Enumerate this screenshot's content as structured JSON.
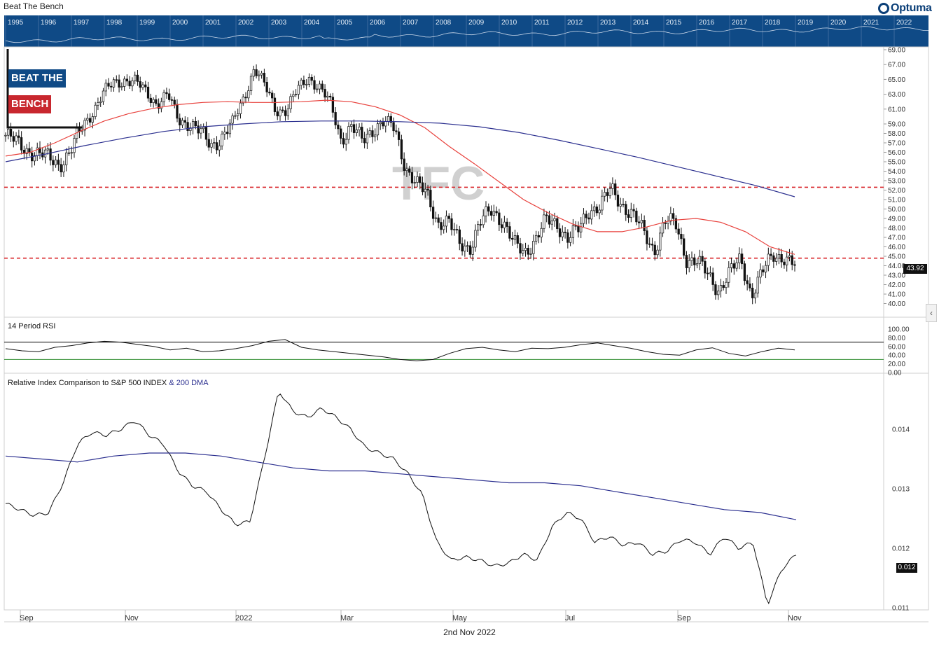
{
  "window": {
    "title": "Beat The Bench"
  },
  "logo": {
    "text": "Optuma"
  },
  "branding": {
    "line1": "BEAT THE",
    "line2": "BENCH"
  },
  "navigator": {
    "years": [
      "1995",
      "1996",
      "1997",
      "1998",
      "1999",
      "2000",
      "2001",
      "2002",
      "2003",
      "2004",
      "2005",
      "2006",
      "2007",
      "2008",
      "2009",
      "2010",
      "2011",
      "2012",
      "2013",
      "2014",
      "2015",
      "2016",
      "2017",
      "2018",
      "2019",
      "2020",
      "2021",
      "2022"
    ]
  },
  "footer": {
    "date": "2nd Nov 2022"
  },
  "colors": {
    "nav": "#0f4a86",
    "brand_blue": "#0f4a86",
    "brand_red": "#c8272e",
    "ma_red": "#e8413c",
    "ma_blue": "#2b2f8f",
    "support": "#d9262b",
    "rsi_upper": "#000000",
    "rsi_lower": "#2e8b2e"
  },
  "chart_data": [
    {
      "type": "candlestick",
      "watermark": "TFC",
      "ylim": [
        40,
        69
      ],
      "yticks": [
        "69.00",
        "67.00",
        "65.00",
        "63.00",
        "61.00",
        "59.00",
        "58.00",
        "57.00",
        "56.00",
        "55.00",
        "54.00",
        "53.00",
        "52.00",
        "51.00",
        "50.00",
        "49.00",
        "48.00",
        "47.00",
        "46.00",
        "45.00",
        "44.00",
        "43.00",
        "42.00",
        "41.00",
        "40.00"
      ],
      "last_value": "43.92",
      "horizontal_lines": [
        52.3,
        44.8
      ],
      "close_series": [
        57.8,
        57.0,
        56.3,
        55.8,
        55.4,
        54.8,
        56.0,
        58.5,
        60.6,
        63.0,
        64.5,
        65.0,
        64.6,
        63.3,
        61.8,
        62.8,
        59.6,
        59.2,
        58.0,
        56.8,
        57.6,
        59.0,
        62.5,
        66.5,
        64.0,
        61.0,
        60.8,
        63.5,
        65.5,
        63.8,
        61.8,
        57.5,
        58.6,
        57.2,
        58.6,
        59.2,
        58.5,
        54.5,
        52.5,
        51.6,
        48.6,
        48.4,
        46.5,
        46.0,
        48.6,
        50.1,
        48.7,
        46.2,
        45.5,
        46.8,
        48.7,
        48.5,
        47.0,
        47.7,
        50.0,
        50.4,
        52.0,
        50.6,
        49.4,
        47.5,
        45.7,
        48.7,
        48.3,
        44.8,
        44.3,
        43.0,
        41.5,
        43.2,
        44.7,
        41.0,
        43.2,
        45.2,
        45.0,
        43.9
      ],
      "ma_50": [
        55.6,
        56.0,
        57.0,
        58.2,
        59.4,
        60.4,
        61.1,
        61.6,
        61.9,
        62.0,
        61.9,
        61.9,
        62.0,
        62.2,
        62.0,
        61.3,
        60.2,
        58.6,
        56.6,
        54.8,
        52.9,
        51.0,
        49.6,
        48.4,
        47.6,
        47.6,
        48.1,
        48.8,
        49.0,
        48.6,
        47.6,
        46.0,
        45.2
      ],
      "ma_200": [
        55.0,
        55.8,
        56.7,
        57.5,
        58.2,
        58.7,
        59.0,
        59.3,
        59.4,
        59.4,
        59.3,
        59.1,
        58.7,
        58.1,
        57.3,
        56.4,
        55.5,
        54.5,
        53.5,
        52.5,
        51.3
      ]
    },
    {
      "type": "line",
      "title": "14 Period RSI",
      "ylim": [
        0,
        100
      ],
      "yticks": [
        "100.00",
        "80.00",
        "60.00",
        "40.00",
        "20.00",
        "0.00"
      ],
      "levels": [
        70,
        30
      ],
      "values": [
        55,
        50,
        48,
        58,
        62,
        68,
        72,
        70,
        65,
        60,
        52,
        56,
        48,
        50,
        55,
        62,
        72,
        76,
        58,
        52,
        48,
        44,
        40,
        36,
        30,
        27,
        30,
        44,
        55,
        58,
        52,
        48,
        56,
        55,
        58,
        64,
        68,
        62,
        56,
        48,
        42,
        40,
        52,
        57,
        44,
        38,
        48,
        56,
        52
      ]
    },
    {
      "type": "line",
      "title": "Relative Index Comparison to S&P 500 INDEX",
      "series_note": "& 200 DMA",
      "ylim": [
        0.011,
        0.0148
      ],
      "yticks": [
        "0.014",
        "0.013",
        "0.012",
        "0.011"
      ],
      "last_value": "0.012",
      "ratio": [
        0.01275,
        0.01265,
        0.01255,
        0.0126,
        0.0131,
        0.01375,
        0.01395,
        0.0139,
        0.014,
        0.01415,
        0.0139,
        0.01375,
        0.0133,
        0.01305,
        0.01295,
        0.01265,
        0.0124,
        0.01245,
        0.0135,
        0.01465,
        0.0143,
        0.0142,
        0.01435,
        0.0142,
        0.014,
        0.0137,
        0.0136,
        0.0135,
        0.01325,
        0.0129,
        0.0121,
        0.0118,
        0.01185,
        0.0118,
        0.0117,
        0.01175,
        0.0119,
        0.0118,
        0.01235,
        0.0126,
        0.0125,
        0.0121,
        0.0122,
        0.01205,
        0.0121,
        0.0119,
        0.01195,
        0.01215,
        0.0121,
        0.0119,
        0.0122,
        0.012,
        0.0121,
        0.01105,
        0.01165,
        0.0119
      ],
      "dma_200": [
        0.01355,
        0.0135,
        0.01345,
        0.01355,
        0.0136,
        0.0136,
        0.01355,
        0.01345,
        0.01335,
        0.0133,
        0.0133,
        0.01325,
        0.0132,
        0.01315,
        0.0131,
        0.0131,
        0.01305,
        0.01295,
        0.01285,
        0.01275,
        0.01265,
        0.0126,
        0.01248
      ]
    }
  ],
  "x_axis": {
    "labels": [
      "Sep",
      "Nov",
      "2022",
      "Mar",
      "May",
      "Jul",
      "Sep",
      "Nov"
    ]
  }
}
